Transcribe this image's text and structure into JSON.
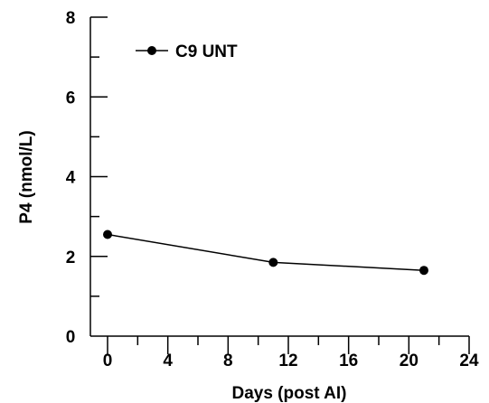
{
  "chart_data": {
    "type": "line",
    "xlabel": "Days (post AI)",
    "ylabel": "P4 (nmol/L)",
    "xlim": [
      0,
      24
    ],
    "ylim": [
      0,
      8
    ],
    "xticks": [
      0,
      4,
      8,
      12,
      16,
      20,
      24
    ],
    "yticks": [
      0,
      2,
      4,
      6,
      8
    ],
    "x_minor_step": 2,
    "y_minor_step": 1,
    "legend_position": "top-left",
    "series": [
      {
        "name": "C9 UNT",
        "x": [
          0,
          11,
          21
        ],
        "y": [
          2.55,
          1.85,
          1.65
        ],
        "color": "#000000",
        "marker": "circle"
      }
    ]
  }
}
